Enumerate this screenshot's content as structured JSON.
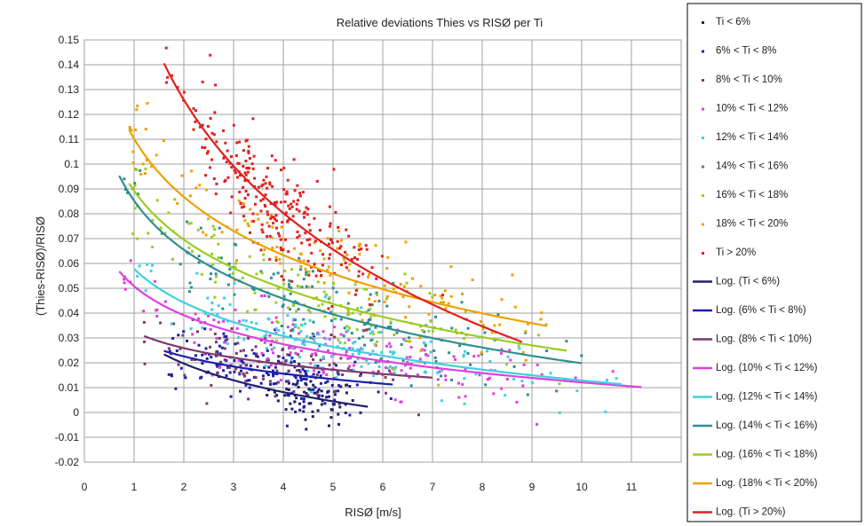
{
  "chart_data": {
    "type": "scatter",
    "title": "Relative deviations Thies vs RISØ per Ti",
    "xlabel": "RISØ [m/s]",
    "ylabel": "(Thies-RISØ)/RISØ",
    "xlim": [
      0,
      12
    ],
    "ylim": [
      -0.02,
      0.15
    ],
    "x_ticks": [
      "0",
      "1",
      "2",
      "3",
      "4",
      "5",
      "6",
      "7",
      "8",
      "9",
      "10",
      "11"
    ],
    "y_ticks": [
      "-0.02",
      "-0.01",
      "0",
      "0.01",
      "0.02",
      "0.03",
      "0.04",
      "0.05",
      "0.06",
      "0.07",
      "0.08",
      "0.09",
      "0.1",
      "0.11",
      "0.12",
      "0.13",
      "0.14",
      "0.15"
    ],
    "grid": true,
    "legend_position": "right",
    "series": [
      {
        "name": "Ti < 6%",
        "color": "#1f1f6e",
        "center_x": 4.6,
        "spread_x": 0.45,
        "spread_y": 0.005,
        "count": 90,
        "fit_a": 0.0312,
        "fit_b": -0.0166
      },
      {
        "name": "6% < Ti < 8%",
        "color": "#1c1fb0",
        "center_x": 3.6,
        "spread_x": 1.0,
        "spread_y": 0.006,
        "count": 140,
        "fit_a": 0.0295,
        "fit_b": -0.01
      },
      {
        "name": "8% < Ti < 10%",
        "color": "#7b3a6e",
        "center_x": 3.8,
        "spread_x": 1.3,
        "spread_y": 0.006,
        "count": 120,
        "fit_a": 0.0325,
        "fit_b": -0.0095
      },
      {
        "name": "10% < Ti < 12%",
        "color": "#e040e0",
        "center_x": 5.0,
        "spread_x": 2.3,
        "spread_y": 0.007,
        "count": 160,
        "fit_a": 0.0508,
        "fit_b": -0.0168
      },
      {
        "name": "12% < Ti < 14%",
        "color": "#40d0e0",
        "center_x": 5.0,
        "spread_x": 2.3,
        "spread_y": 0.007,
        "count": 150,
        "fit_a": 0.0578,
        "fit_b": -0.0195
      },
      {
        "name": "14% < Ti < 16%",
        "color": "#2f8f8f",
        "center_x": 4.8,
        "spread_x": 2.2,
        "spread_y": 0.008,
        "count": 150,
        "fit_a": 0.0852,
        "fit_b": -0.0284
      },
      {
        "name": "16% < Ti < 18%",
        "color": "#9ccc20",
        "center_x": 4.6,
        "spread_x": 2.2,
        "spread_y": 0.009,
        "count": 140,
        "fit_a": 0.0892,
        "fit_b": -0.0283
      },
      {
        "name": "18% < Ti < 20%",
        "color": "#f0a000",
        "center_x": 5.0,
        "spread_x": 2.4,
        "spread_y": 0.009,
        "count": 140,
        "fit_a": 0.1102,
        "fit_b": -0.0338
      },
      {
        "name": "Ti > 20%",
        "color": "#e02020",
        "center_x": 3.8,
        "spread_x": 1.0,
        "spread_y": 0.01,
        "count": 260,
        "fit_a": 0.1715,
        "fit_b": -0.0658
      }
    ],
    "trendlines": [
      {
        "name": "Log. (Ti < 6%)",
        "color": "#1f1f6e",
        "x_range": [
          1.6,
          5.7
        ]
      },
      {
        "name": "Log. (6% < Ti < 8%)",
        "color": "#1c1fb0",
        "x_range": [
          1.6,
          6.2
        ]
      },
      {
        "name": "Log. (8% < Ti < 10%)",
        "color": "#7b3a6e",
        "x_range": [
          1.2,
          7.0
        ]
      },
      {
        "name": "Log. (10% < Ti < 12%)",
        "color": "#e040e0",
        "x_range": [
          0.7,
          11.2
        ]
      },
      {
        "name": "Log. (12% < Ti < 14%)",
        "color": "#40d0e0",
        "x_range": [
          1.0,
          10.8
        ]
      },
      {
        "name": "Log. (14% < Ti < 16%)",
        "color": "#2f8f8f",
        "x_range": [
          0.7,
          10.0
        ]
      },
      {
        "name": "Log. (16% < Ti < 18%)",
        "color": "#9ccc20",
        "x_range": [
          0.9,
          9.7
        ]
      },
      {
        "name": "Log. (18% < Ti < 20%)",
        "color": "#f0a000",
        "x_range": [
          0.9,
          9.3
        ]
      },
      {
        "name": "Log. (Ti > 20%)",
        "color": "#e02020",
        "x_range": [
          1.6,
          8.8
        ]
      }
    ]
  }
}
